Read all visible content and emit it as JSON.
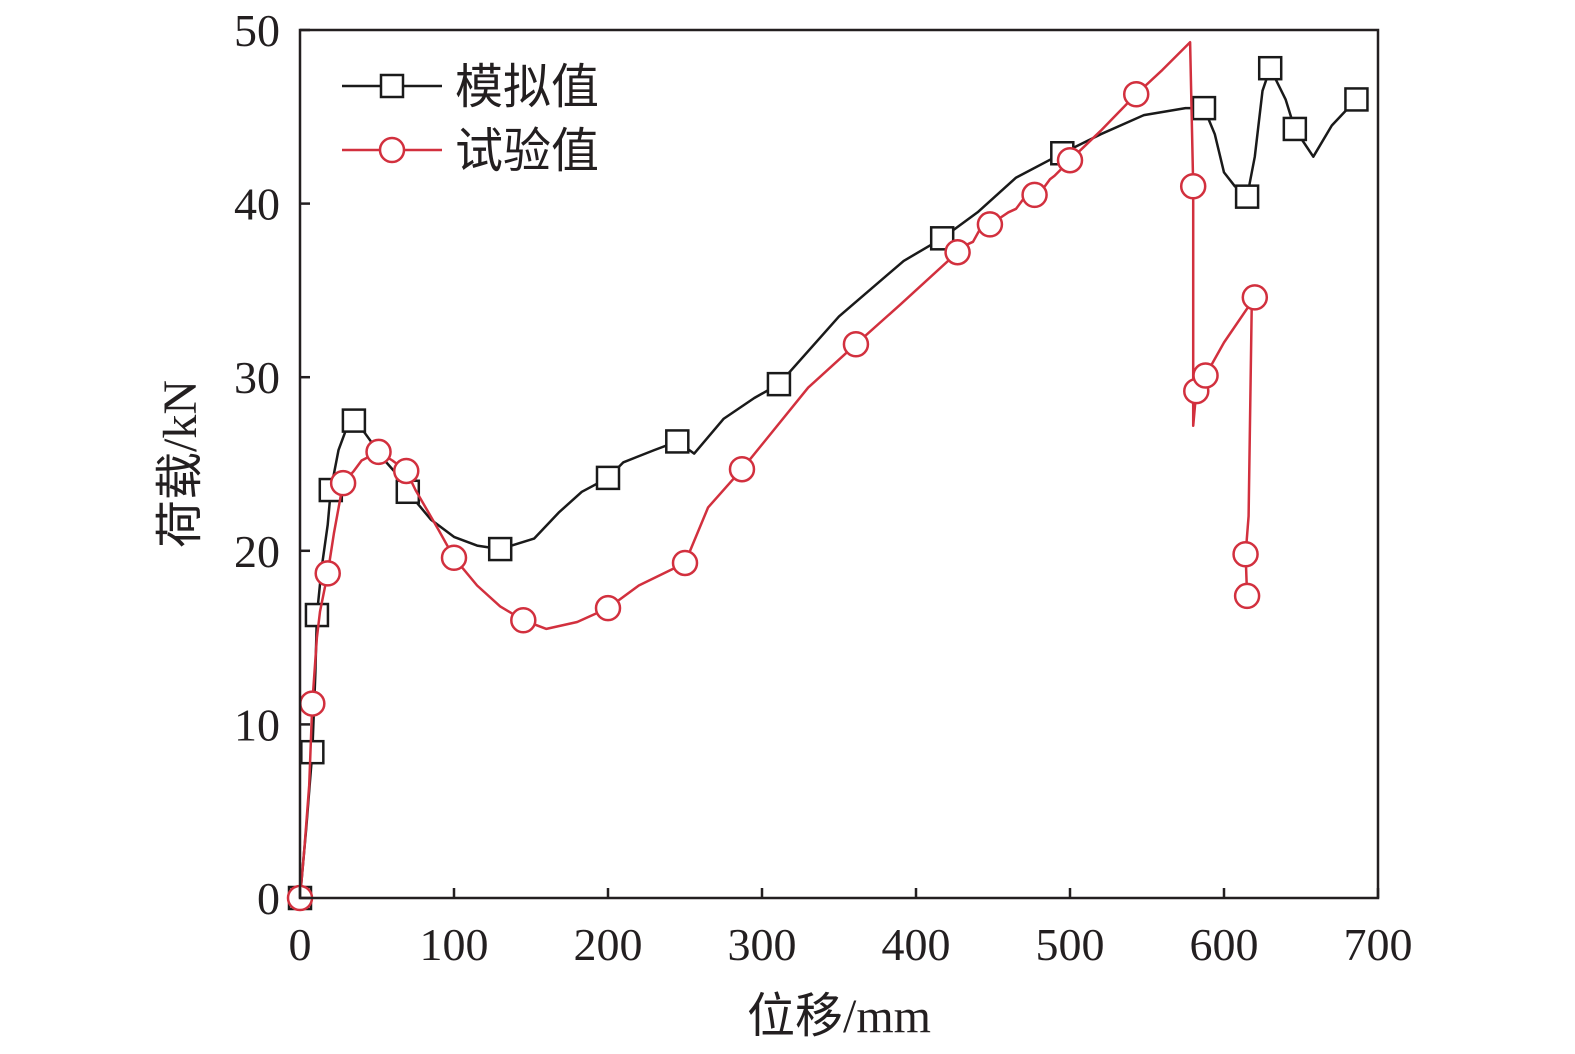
{
  "chart_data": {
    "type": "line",
    "title": "",
    "xlabel": "位移/mm",
    "ylabel": "荷载/kN",
    "xlim": [
      0,
      700
    ],
    "ylim": [
      0,
      50
    ],
    "xticks": [
      0,
      100,
      200,
      300,
      400,
      500,
      600,
      700
    ],
    "yticks": [
      0,
      10,
      20,
      30,
      40,
      50
    ],
    "xtick_labels": [
      "0",
      "100",
      "200",
      "300",
      "400",
      "500",
      "600",
      "700"
    ],
    "ytick_labels": [
      "0",
      "10",
      "20",
      "30",
      "40",
      "50"
    ],
    "grid": false,
    "legend_position": "top-left",
    "series": [
      {
        "name": "模拟值",
        "color": "#1a1a1a",
        "marker": "square",
        "line": [
          [
            0,
            0
          ],
          [
            4,
            4
          ],
          [
            8,
            8.4
          ],
          [
            10,
            13
          ],
          [
            11,
            16.3
          ],
          [
            14,
            19
          ],
          [
            18,
            21.5
          ],
          [
            20,
            23.5
          ],
          [
            25,
            25.8
          ],
          [
            30,
            27
          ],
          [
            35,
            27.5
          ],
          [
            42,
            26.8
          ],
          [
            55,
            25.2
          ],
          [
            65,
            24.2
          ],
          [
            70,
            23.4
          ],
          [
            85,
            21.8
          ],
          [
            100,
            20.8
          ],
          [
            115,
            20.3
          ],
          [
            130,
            20.1
          ],
          [
            152,
            20.7
          ],
          [
            168,
            22.2
          ],
          [
            183,
            23.4
          ],
          [
            200,
            24.2
          ],
          [
            210,
            25.1
          ],
          [
            230,
            25.8
          ],
          [
            245,
            26.3
          ],
          [
            256,
            25.6
          ],
          [
            275,
            27.6
          ],
          [
            295,
            28.8
          ],
          [
            311,
            29.6
          ],
          [
            350,
            33.5
          ],
          [
            392,
            36.7
          ],
          [
            417,
            38
          ],
          [
            440,
            39.5
          ],
          [
            465,
            41.5
          ],
          [
            495,
            42.9
          ],
          [
            520,
            44
          ],
          [
            548,
            45.1
          ],
          [
            575,
            45.5
          ],
          [
            587,
            45.5
          ],
          [
            594,
            44
          ],
          [
            600,
            41.8
          ],
          [
            607,
            41
          ],
          [
            615,
            40.4
          ],
          [
            620,
            42.7
          ],
          [
            625,
            46.5
          ],
          [
            630,
            47.8
          ],
          [
            640,
            46
          ],
          [
            646,
            44.3
          ],
          [
            658,
            42.7
          ],
          [
            670,
            44.5
          ],
          [
            686,
            46
          ]
        ],
        "markers": [
          [
            0,
            0
          ],
          [
            8,
            8.4
          ],
          [
            11,
            16.3
          ],
          [
            20,
            23.5
          ],
          [
            35,
            27.5
          ],
          [
            70,
            23.4
          ],
          [
            130,
            20.1
          ],
          [
            200,
            24.2
          ],
          [
            245,
            26.3
          ],
          [
            311,
            29.6
          ],
          [
            417,
            38
          ],
          [
            495,
            42.9
          ],
          [
            587,
            45.5
          ],
          [
            615,
            40.4
          ],
          [
            630,
            47.8
          ],
          [
            646,
            44.3
          ],
          [
            686,
            46
          ]
        ]
      },
      {
        "name": "试验值",
        "color": "#d2303e",
        "marker": "circle",
        "line": [
          [
            0,
            0
          ],
          [
            3,
            3
          ],
          [
            6,
            6.5
          ],
          [
            8,
            11.2
          ],
          [
            11,
            15
          ],
          [
            13,
            16.5
          ],
          [
            18,
            18.7
          ],
          [
            22,
            21
          ],
          [
            28,
            23.9
          ],
          [
            35,
            24.6
          ],
          [
            40,
            25.2
          ],
          [
            51,
            25.7
          ],
          [
            60,
            25.2
          ],
          [
            69,
            24.6
          ],
          [
            75,
            23.5
          ],
          [
            90,
            21.2
          ],
          [
            100,
            19.6
          ],
          [
            115,
            18
          ],
          [
            130,
            16.8
          ],
          [
            145,
            16
          ],
          [
            160,
            15.5
          ],
          [
            180,
            15.9
          ],
          [
            200,
            16.7
          ],
          [
            220,
            18
          ],
          [
            250,
            19.3
          ],
          [
            265,
            22.5
          ],
          [
            287,
            24.7
          ],
          [
            330,
            29.4
          ],
          [
            361,
            31.9
          ],
          [
            390,
            34.2
          ],
          [
            427,
            37.2
          ],
          [
            432,
            37.6
          ],
          [
            437,
            37.8
          ],
          [
            442,
            38.6
          ],
          [
            448,
            38.8
          ],
          [
            455,
            39.2
          ],
          [
            460,
            39.5
          ],
          [
            465,
            39.7
          ],
          [
            470,
            40.3
          ],
          [
            477,
            40.5
          ],
          [
            482,
            40.8
          ],
          [
            487,
            41.4
          ],
          [
            490,
            41.6
          ],
          [
            500,
            42.5
          ],
          [
            520,
            44.2
          ],
          [
            543,
            46.3
          ],
          [
            560,
            47.7
          ],
          [
            578,
            49.3
          ],
          [
            580,
            41
          ],
          [
            580,
            29
          ],
          [
            580,
            27.2
          ],
          [
            582,
            29.2
          ],
          [
            588,
            30.1
          ],
          [
            600,
            32
          ],
          [
            620,
            34.6
          ],
          [
            618,
            34
          ],
          [
            616,
            22
          ],
          [
            614,
            19.8
          ],
          [
            615,
            17.4
          ]
        ],
        "markers": [
          [
            0,
            0
          ],
          [
            8,
            11.2
          ],
          [
            18,
            18.7
          ],
          [
            28,
            23.9
          ],
          [
            51,
            25.7
          ],
          [
            69,
            24.6
          ],
          [
            100,
            19.6
          ],
          [
            145,
            16
          ],
          [
            200,
            16.7
          ],
          [
            250,
            19.3
          ],
          [
            287,
            24.7
          ],
          [
            361,
            31.9
          ],
          [
            427,
            37.2
          ],
          [
            448,
            38.8
          ],
          [
            477,
            40.5
          ],
          [
            500,
            42.5
          ],
          [
            543,
            46.3
          ],
          [
            580,
            41
          ],
          [
            582,
            29.2
          ],
          [
            588,
            30.1
          ],
          [
            620,
            34.6
          ],
          [
            614,
            19.8
          ],
          [
            615,
            17.4
          ]
        ]
      }
    ]
  }
}
